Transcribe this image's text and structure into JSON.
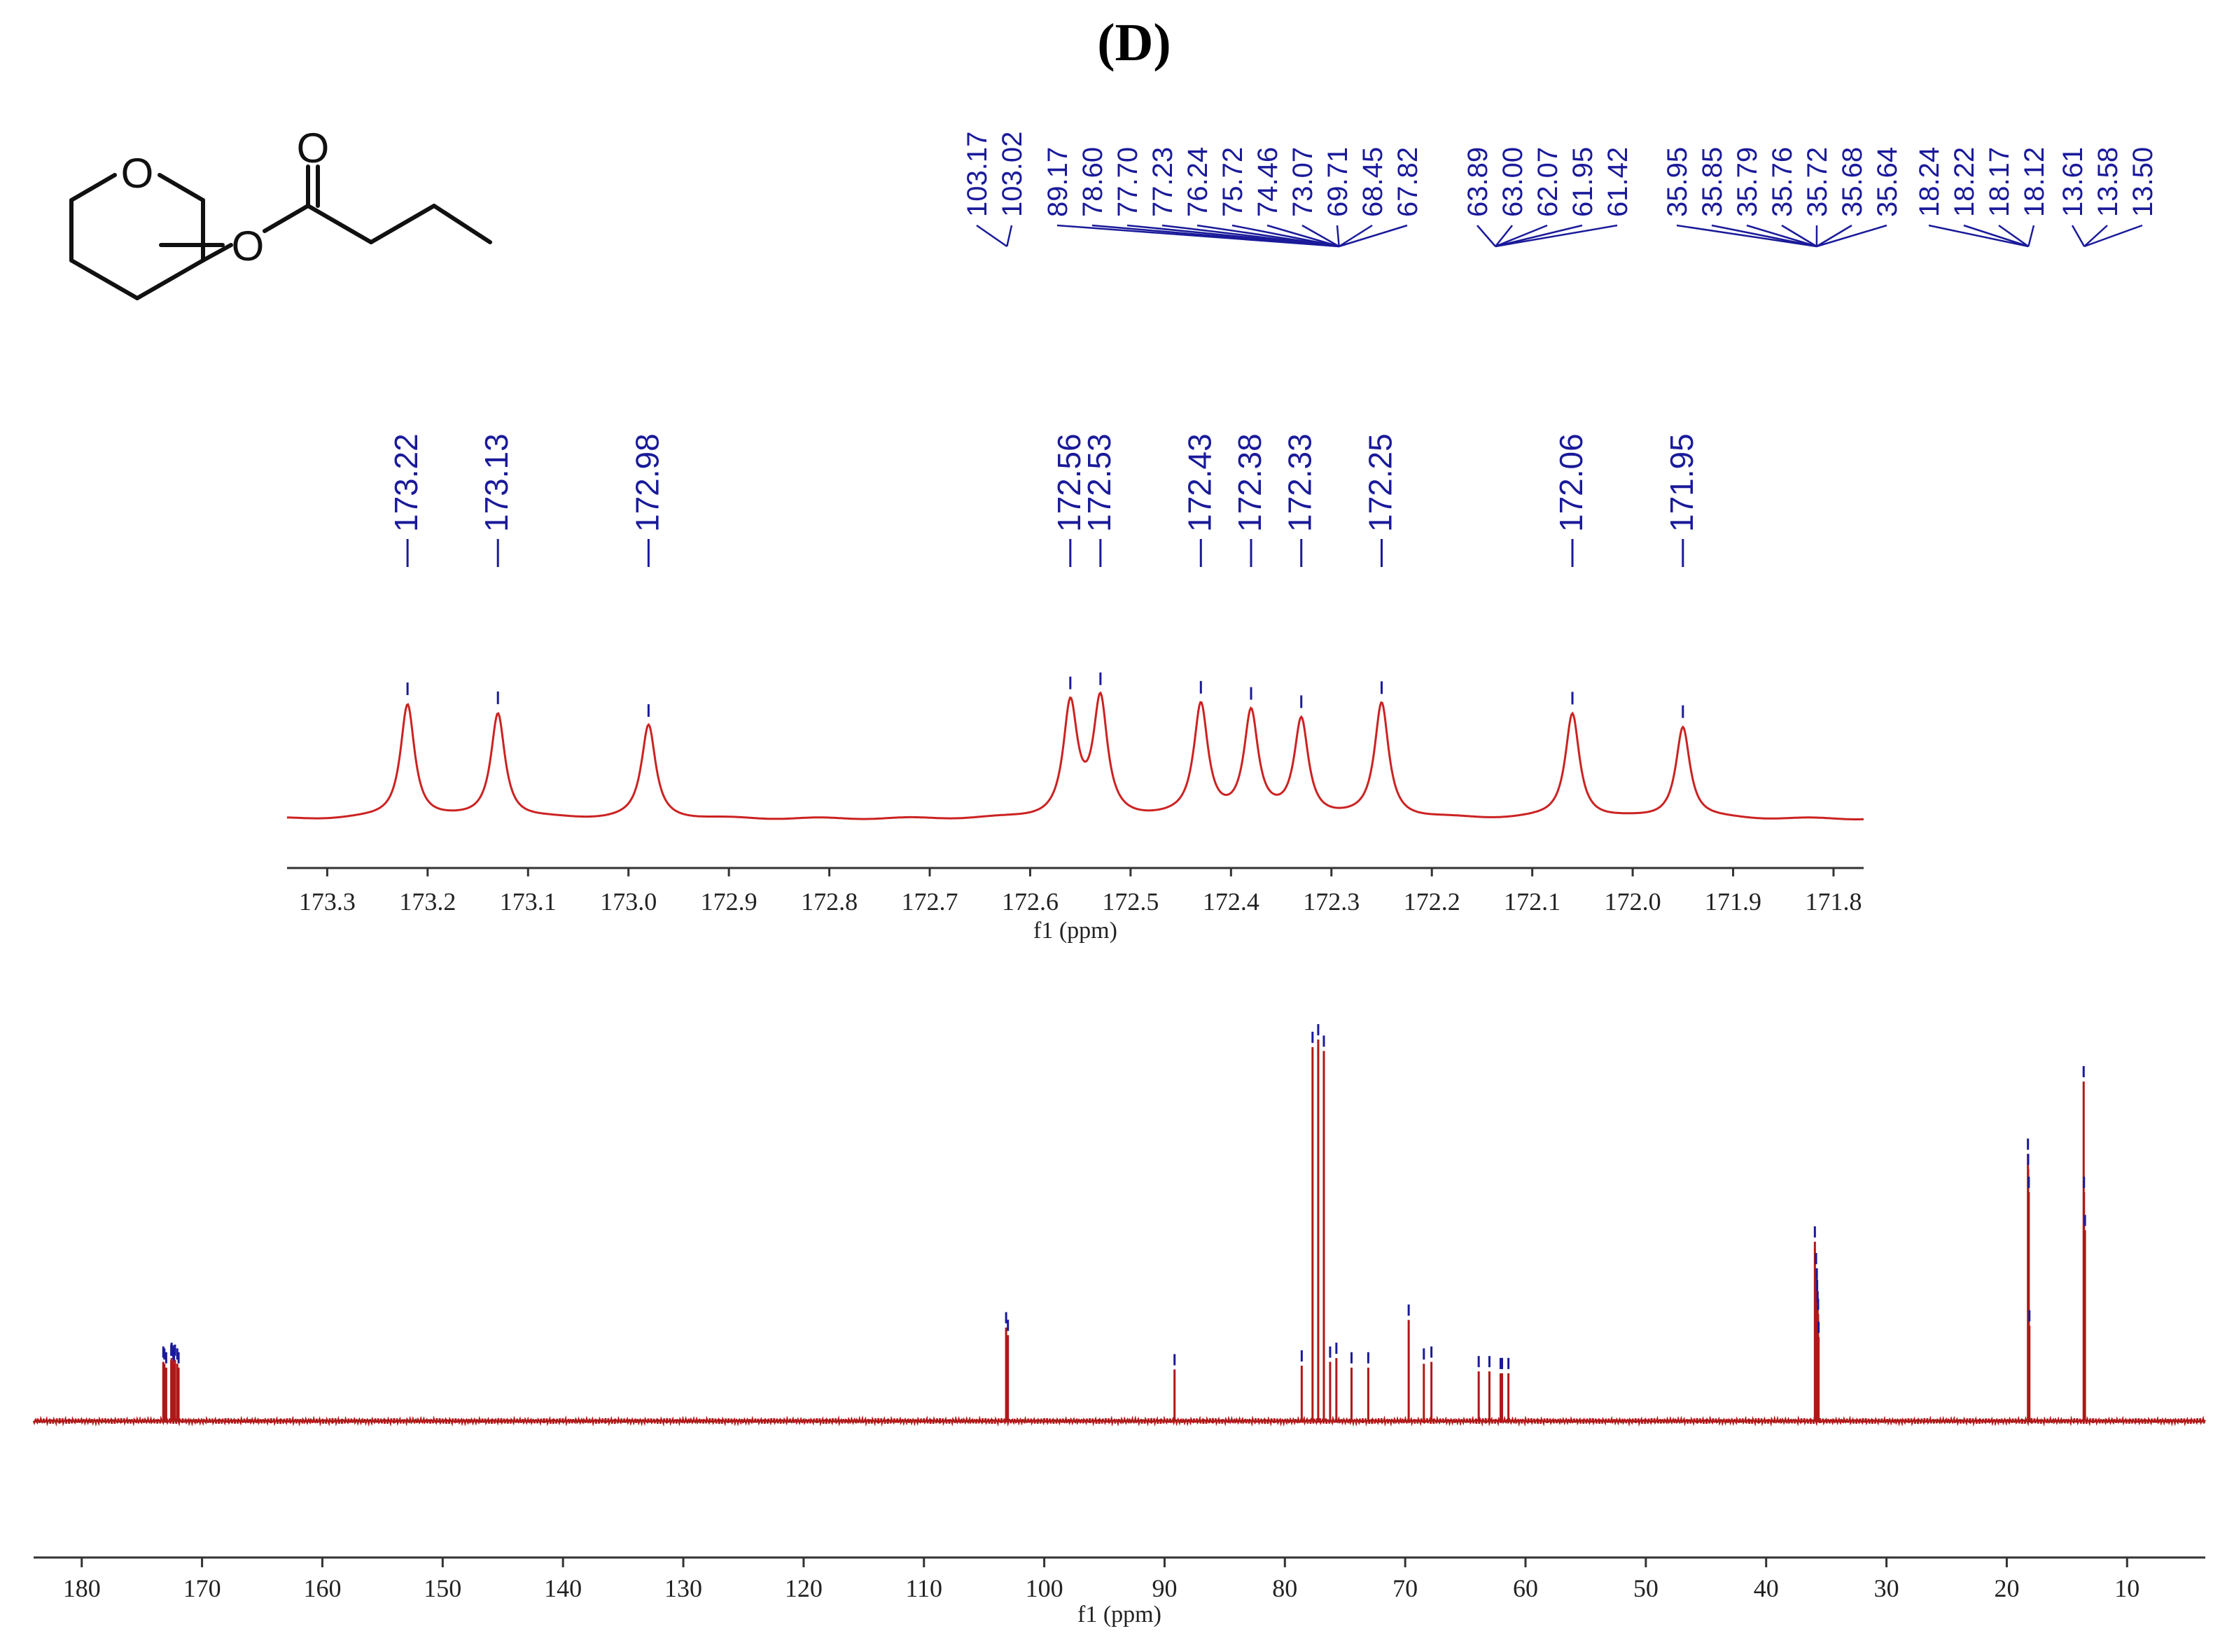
{
  "panel": {
    "label": "(D)"
  },
  "structure": {
    "atoms": [
      "O",
      "O",
      "O"
    ]
  },
  "chart_data": [
    {
      "type": "line",
      "title": "",
      "xlabel": "f1 (ppm)",
      "x_reversed": true,
      "xlim": [
        171.77,
        173.34
      ],
      "xticks": [
        "173.3",
        "173.2",
        "173.1",
        "173.0",
        "172.9",
        "172.8",
        "172.7",
        "172.6",
        "172.5",
        "172.4",
        "172.3",
        "172.2",
        "172.1",
        "172.0",
        "171.9",
        "171.8"
      ],
      "peaks": [
        {
          "ppm": 173.22,
          "label": "173.22",
          "intensity": 0.86
        },
        {
          "ppm": 173.13,
          "label": "173.13",
          "intensity": 0.79
        },
        {
          "ppm": 172.98,
          "label": "172.98",
          "intensity": 0.7
        },
        {
          "ppm": 172.56,
          "label": "172.56",
          "intensity": 0.84
        },
        {
          "ppm": 172.53,
          "label": "172.53",
          "intensity": 0.87
        },
        {
          "ppm": 172.43,
          "label": "172.43",
          "intensity": 0.84
        },
        {
          "ppm": 172.38,
          "label": "172.38",
          "intensity": 0.78
        },
        {
          "ppm": 172.33,
          "label": "172.33",
          "intensity": 0.73
        },
        {
          "ppm": 172.25,
          "label": "172.25",
          "intensity": 0.86
        },
        {
          "ppm": 172.06,
          "label": "172.06",
          "intensity": 0.79
        },
        {
          "ppm": 171.95,
          "label": "171.95",
          "intensity": 0.69
        }
      ],
      "label_order": [
        "173.22",
        "173.13",
        "172.98",
        "172.56",
        "172.53",
        "172.43",
        "172.38",
        "172.33",
        "172.25",
        "172.06",
        "171.95"
      ],
      "colors": {
        "spectrum": "#cc2222",
        "labels": "#1a1a9a"
      }
    },
    {
      "type": "line",
      "title": "",
      "xlabel": "f1 (ppm)",
      "x_reversed": true,
      "xlim": [
        3.5,
        184.0
      ],
      "xticks": [
        "180",
        "170",
        "160",
        "150",
        "140",
        "130",
        "120",
        "110",
        "100",
        "90",
        "80",
        "70",
        "60",
        "50",
        "40",
        "30",
        "20",
        "10"
      ],
      "peaks": [
        {
          "ppm": 173.22,
          "intensity": 0.155
        },
        {
          "ppm": 173.13,
          "intensity": 0.15
        },
        {
          "ppm": 172.98,
          "intensity": 0.14
        },
        {
          "ppm": 172.56,
          "intensity": 0.16
        },
        {
          "ppm": 172.53,
          "intensity": 0.165
        },
        {
          "ppm": 172.43,
          "intensity": 0.158
        },
        {
          "ppm": 172.38,
          "intensity": 0.15
        },
        {
          "ppm": 172.33,
          "intensity": 0.145
        },
        {
          "ppm": 172.25,
          "intensity": 0.16
        },
        {
          "ppm": 172.06,
          "intensity": 0.15
        },
        {
          "ppm": 171.95,
          "intensity": 0.14
        },
        {
          "ppm": 103.17,
          "intensity": 0.245
        },
        {
          "ppm": 103.02,
          "intensity": 0.225
        },
        {
          "ppm": 89.17,
          "intensity": 0.135
        },
        {
          "ppm": 78.6,
          "intensity": 0.145
        },
        {
          "ppm": 77.7,
          "intensity": 0.98
        },
        {
          "ppm": 77.23,
          "intensity": 1.0
        },
        {
          "ppm": 76.76,
          "intensity": 0.97
        },
        {
          "ppm": 76.24,
          "intensity": 0.155
        },
        {
          "ppm": 75.72,
          "intensity": 0.165
        },
        {
          "ppm": 74.46,
          "intensity": 0.14
        },
        {
          "ppm": 73.07,
          "intensity": 0.14
        },
        {
          "ppm": 69.71,
          "intensity": 0.265
        },
        {
          "ppm": 68.45,
          "intensity": 0.15
        },
        {
          "ppm": 67.82,
          "intensity": 0.155
        },
        {
          "ppm": 63.89,
          "intensity": 0.13
        },
        {
          "ppm": 63.0,
          "intensity": 0.13
        },
        {
          "ppm": 62.07,
          "intensity": 0.125
        },
        {
          "ppm": 61.95,
          "intensity": 0.125
        },
        {
          "ppm": 61.42,
          "intensity": 0.125
        },
        {
          "ppm": 35.95,
          "intensity": 0.47
        },
        {
          "ppm": 35.85,
          "intensity": 0.4
        },
        {
          "ppm": 35.79,
          "intensity": 0.36
        },
        {
          "ppm": 35.76,
          "intensity": 0.33
        },
        {
          "ppm": 35.72,
          "intensity": 0.3
        },
        {
          "ppm": 35.68,
          "intensity": 0.28
        },
        {
          "ppm": 35.64,
          "intensity": 0.22
        },
        {
          "ppm": 18.24,
          "intensity": 0.7
        },
        {
          "ppm": 18.22,
          "intensity": 0.66
        },
        {
          "ppm": 18.17,
          "intensity": 0.6
        },
        {
          "ppm": 18.12,
          "intensity": 0.25
        },
        {
          "ppm": 13.61,
          "intensity": 0.89
        },
        {
          "ppm": 13.58,
          "intensity": 0.6
        },
        {
          "ppm": 13.5,
          "intensity": 0.5
        }
      ],
      "label_groups": [
        {
          "labels": [
            "103.17",
            "103.02"
          ],
          "anchor_ppm": 103.1
        },
        {
          "labels": [
            "89.17",
            "78.60",
            "77.70",
            "77.23",
            "76.24",
            "75.72",
            "74.46",
            "73.07",
            "69.71",
            "68.45",
            "67.82"
          ],
          "anchor_ppm": 75.5
        },
        {
          "labels": [
            "63.89",
            "63.00",
            "62.07",
            "61.95",
            "61.42"
          ],
          "anchor_ppm": 62.5
        },
        {
          "labels": [
            "35.95",
            "35.85",
            "35.79",
            "35.76",
            "35.72",
            "35.68",
            "35.64"
          ],
          "anchor_ppm": 35.8
        },
        {
          "labels": [
            "18.24",
            "18.22",
            "18.17",
            "18.12"
          ],
          "anchor_ppm": 18.2
        },
        {
          "labels": [
            "13.61",
            "13.58",
            "13.50"
          ],
          "anchor_ppm": 13.56
        }
      ],
      "colors": {
        "spectrum": "#b01818",
        "labels": "#1a1a9a"
      }
    }
  ]
}
